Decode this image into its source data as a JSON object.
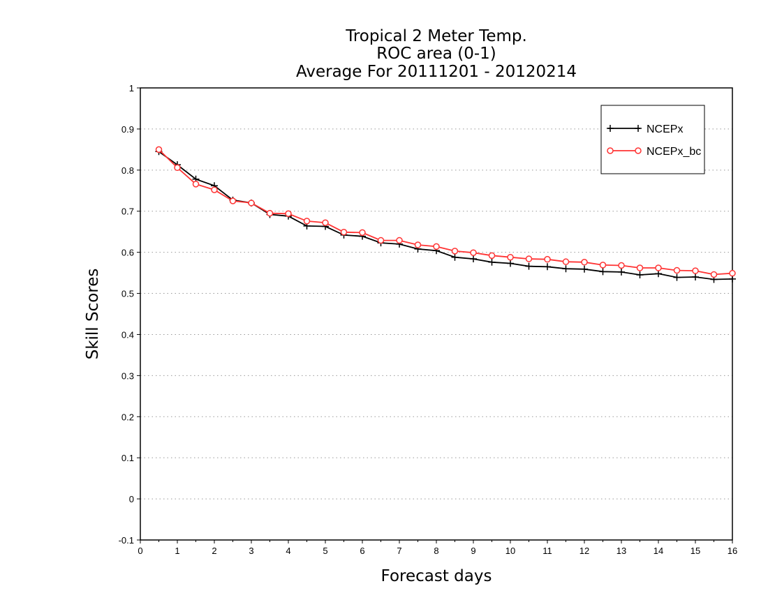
{
  "chart_data": {
    "type": "line",
    "title_lines": [
      "Tropical 2 Meter Temp.",
      "ROC area (0-1)",
      "Average For 20111201 - 20120214"
    ],
    "xlabel": "Forecast days",
    "ylabel": "Skill Scores",
    "xlim": [
      0,
      16
    ],
    "ylim": [
      -0.1,
      1
    ],
    "xticks": [
      0,
      1,
      2,
      3,
      4,
      5,
      6,
      7,
      8,
      9,
      10,
      11,
      12,
      13,
      14,
      15,
      16
    ],
    "xtick_labels": [
      "0",
      "1",
      "2",
      "3",
      "4",
      "5",
      "6",
      "7",
      "8",
      "9",
      "10",
      "11",
      "12",
      "13",
      "14",
      "15",
      "16"
    ],
    "yticks": [
      -0.1,
      0,
      0.1,
      0.2,
      0.3,
      0.4,
      0.5,
      0.6,
      0.7,
      0.8,
      0.9,
      1
    ],
    "ytick_labels": [
      "-0.1",
      "0",
      "0.1",
      "0.2",
      "0.3",
      "0.4",
      "0.5",
      "0.6",
      "0.7",
      "0.8",
      "0.9",
      "1"
    ],
    "grid": "horizontal dotted",
    "legend_position": "top-right",
    "x": [
      0.5,
      1,
      1.5,
      2,
      2.5,
      3,
      3.5,
      4,
      4.5,
      5,
      5.5,
      6,
      6.5,
      7,
      7.5,
      8,
      8.5,
      9,
      9.5,
      10,
      10.5,
      11,
      11.5,
      12,
      12.5,
      13,
      13.5,
      14,
      14.5,
      15,
      15.5,
      16
    ],
    "series": [
      {
        "name": "NCEPx",
        "color": "#000000",
        "marker": "plus",
        "values": [
          0.845,
          0.813,
          0.778,
          0.762,
          0.727,
          0.72,
          0.692,
          0.688,
          0.664,
          0.663,
          0.642,
          0.639,
          0.623,
          0.62,
          0.608,
          0.604,
          0.588,
          0.584,
          0.576,
          0.573,
          0.566,
          0.565,
          0.56,
          0.559,
          0.553,
          0.552,
          0.545,
          0.548,
          0.539,
          0.54,
          0.534,
          0.535
        ]
      },
      {
        "name": "NCEPx_bc",
        "color": "#ff3333",
        "marker": "circle",
        "values": [
          0.85,
          0.806,
          0.766,
          0.752,
          0.725,
          0.72,
          0.695,
          0.694,
          0.676,
          0.672,
          0.649,
          0.648,
          0.629,
          0.629,
          0.618,
          0.614,
          0.603,
          0.599,
          0.592,
          0.588,
          0.584,
          0.583,
          0.577,
          0.576,
          0.569,
          0.568,
          0.562,
          0.562,
          0.556,
          0.555,
          0.546,
          0.549
        ]
      }
    ]
  }
}
